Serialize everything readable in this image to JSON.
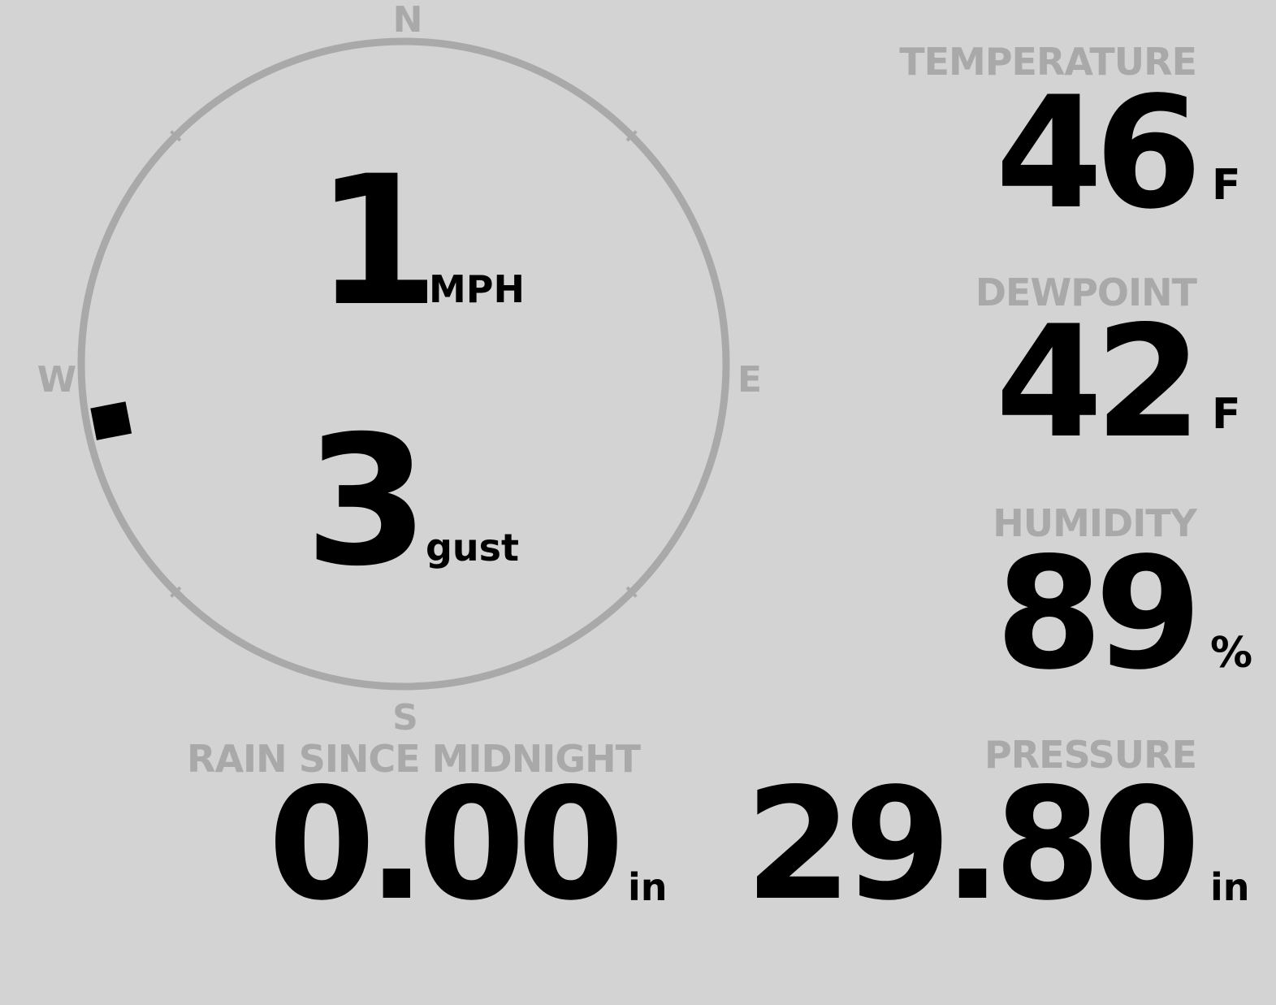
{
  "compass": {
    "north": "N",
    "south": "S",
    "east": "E",
    "west": "W",
    "direction_degrees": 259,
    "ring_color": "#a9a9a9",
    "marker_color": "#000000"
  },
  "wind": {
    "speed": "1",
    "speed_unit": "MPH",
    "gust": "3",
    "gust_unit": "gust"
  },
  "temperature": {
    "label": "TEMPERATURE",
    "value": "46",
    "unit": "F"
  },
  "dewpoint": {
    "label": "DEWPOINT",
    "value": "42",
    "unit": "F"
  },
  "humidity": {
    "label": "HUMIDITY",
    "value": "89",
    "unit": "%"
  },
  "rain": {
    "label": "RAIN SINCE MIDNIGHT",
    "value": "0.00",
    "unit": "in"
  },
  "pressure": {
    "label": "PRESSURE",
    "value": "29.80",
    "unit": "in"
  },
  "colors": {
    "background": "#d3d3d3",
    "label": "#a9a9a9",
    "value": "#000000"
  }
}
